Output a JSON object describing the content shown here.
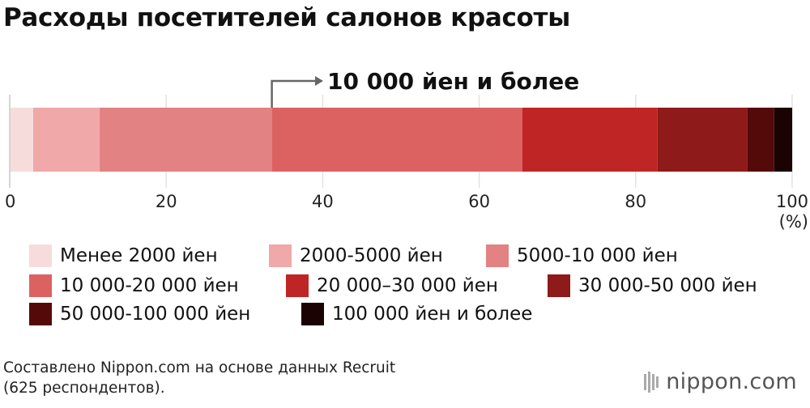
{
  "title": "Расходы посетителей салонов красоты",
  "source": {
    "line1": "Составлено Nippon.com на основе данных Recruit",
    "line2": "(625 респондентов)."
  },
  "logo": {
    "text": "nippon.com"
  },
  "chart_data": {
    "type": "bar",
    "orientation": "horizontal-stacked",
    "xlim": [
      0,
      100
    ],
    "x_ticks": [
      0,
      20,
      40,
      60,
      80,
      100
    ],
    "x_unit": "(%)",
    "grid": true,
    "annotation": {
      "text": "10 000 йен и более",
      "at": 33.5
    },
    "series": [
      {
        "name": "Менее 2000 йен",
        "value": 3.0,
        "color": "#f7dcdc"
      },
      {
        "name": "2000-5000 йен",
        "value": 8.5,
        "color": "#f0a8a8"
      },
      {
        "name": "5000-10 000 йен",
        "value": 22.0,
        "color": "#e28282"
      },
      {
        "name": "10 000-20 000 йен",
        "value": 32.0,
        "color": "#dc6262"
      },
      {
        "name": "20 000–30 000 йен",
        "value": 17.3,
        "color": "#c02525"
      },
      {
        "name": "30 000-50 000 йен",
        "value": 11.5,
        "color": "#8e1a1a"
      },
      {
        "name": "50 000-100 000 йен",
        "value": 3.4,
        "color": "#550a0a"
      },
      {
        "name": "100 000 йен и более",
        "value": 2.3,
        "color": "#1c0303"
      }
    ]
  }
}
